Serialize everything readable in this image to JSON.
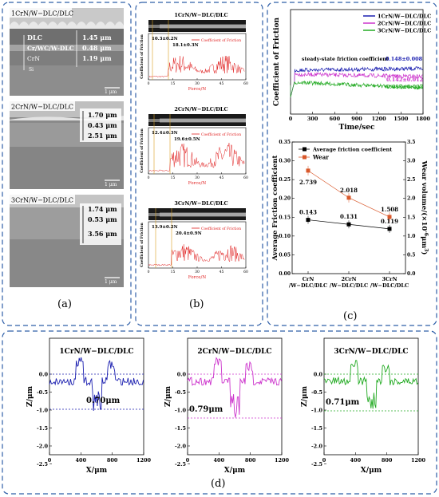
{
  "colors": {
    "frame": "#2f5fa8",
    "blue": "#1b1fb0",
    "magenta": "#cc33cc",
    "green": "#22aa22",
    "red": "#e02020",
    "orange": "#d9582b",
    "black": "#111111"
  },
  "panel_a": {
    "label": "(a)",
    "samples": [
      {
        "title": "1CrN/W−DLC/DLC",
        "layers": [
          "DLC",
          "Cr/WC/W-DLC",
          "CrN"
        ],
        "si_label": "Si",
        "thicknesses": [
          "1.45 μm",
          "0.48 μm",
          "1.19 μm"
        ],
        "scale": "1 μm"
      },
      {
        "title": "2CrN/W−DLC/DLC",
        "thicknesses": [
          "1.70 μm",
          "0.43 μm",
          "2.51 μm"
        ],
        "scale": "1 μm"
      },
      {
        "title": "3CrN/W−DLC/DLC",
        "thicknesses": [
          "1.74 μm",
          "0.53 μm",
          "3.56 μm"
        ],
        "scale": "1 μm"
      }
    ]
  },
  "panel_b": {
    "label": "(b)",
    "ylabel": "Coefficient of Friction",
    "xlabel": "Force/N",
    "legend": "Coefficient of Friction",
    "xticks": [
      "0",
      "15",
      "30",
      "45",
      "60"
    ],
    "subplots": [
      {
        "title": "1CrN/W−DLC/DLC",
        "lc1": "10.3±0.2N",
        "lc2": "18.1±0.3N"
      },
      {
        "title": "2CrN/W−DLC/DLC",
        "lc1": "12.4±0.3N",
        "lc2": "19.6±0.5N"
      },
      {
        "title": "3CrN/W−DLC/DLC",
        "lc1": "13.9±0.2N",
        "lc2": "20.4±0.9N"
      }
    ]
  },
  "panel_c": {
    "label": "(c)",
    "top": {
      "ylabel": "Coefficient of Friction",
      "xlabel": "Time/sec",
      "annotation": "steady-state friction coefficient",
      "xticks": [
        "0",
        "300",
        "600",
        "900",
        "1200",
        "1500",
        "1800"
      ],
      "values": [
        "0.148±0.008",
        "0.142±0.012",
        "0.097±0.007"
      ],
      "legend": [
        "1CrN/W−DLC/DLC",
        "2CrN/W−DLC/DLC",
        "3CrN/W−DLC/DLC"
      ]
    },
    "bottom": {
      "ylabel": "Average Friction coefficient",
      "ylabel2": "Wear volume/(×10",
      "ylabel2_exp": "-6",
      "ylabel2_unit": "μm",
      "ylabel2_exp2": "3",
      "ylabel2_close": ")",
      "legend": [
        "Average friction coefficient",
        "Wear"
      ],
      "yticks_left": [
        "0.00",
        "0.05",
        "0.10",
        "0.15",
        "0.20",
        "0.25",
        "0.30",
        "0.35"
      ],
      "yticks_right": [
        "0.0",
        "0.5",
        "1.0",
        "1.5",
        "2.0",
        "2.5",
        "3.0",
        "3.5"
      ],
      "categories": [
        [
          "CrN",
          "/W−DLC/DLC"
        ],
        [
          "2CrN",
          "/W−DLC/DLC"
        ],
        [
          "3CrN",
          "/W−DLC/DLC"
        ]
      ],
      "friction_labels": [
        "0.143",
        "0.131",
        "0.119"
      ],
      "wear_labels": [
        "2.739",
        "2.018",
        "1.508"
      ]
    }
  },
  "panel_d": {
    "label": "(d)",
    "ylabel": "Z/μm",
    "xlabel": "X/μm",
    "yticks": [
      "0.0",
      "-0.5",
      "-1.0",
      "-1.5",
      "-2.0",
      "-2.5"
    ],
    "xticks": [
      "0",
      "400",
      "800",
      "1200"
    ],
    "plots": [
      {
        "title": "1CrN/W−DLC/DLC",
        "depth": "0.70μm"
      },
      {
        "title": "2CrN/W−DLC/DLC",
        "depth": "0.79μm"
      },
      {
        "title": "3CrN/W−DLC/DLC",
        "depth": "0.71μm"
      }
    ]
  },
  "chart_data": [
    {
      "type": "line",
      "title": "",
      "xlabel": "Time/sec",
      "ylabel": "Coefficient of Friction",
      "xlim": [
        0,
        1800
      ],
      "series": [
        {
          "name": "1CrN/W−DLC/DLC",
          "steady_state": 0.148,
          "error": 0.008
        },
        {
          "name": "2CrN/W−DLC/DLC",
          "steady_state": 0.142,
          "error": 0.012
        },
        {
          "name": "3CrN/W−DLC/DLC",
          "steady_state": 0.097,
          "error": 0.007
        }
      ]
    },
    {
      "type": "line",
      "xlabel": "",
      "ylabel": "Average Friction coefficient",
      "ylim": [
        0,
        0.35
      ],
      "y2lim": [
        0,
        3.5
      ],
      "categories": [
        "CrN/W−DLC/DLC",
        "2CrN/W−DLC/DLC",
        "3CrN/W−DLC/DLC"
      ],
      "series": [
        {
          "name": "Average friction coefficient",
          "values": [
            0.143,
            0.131,
            0.119
          ]
        },
        {
          "name": "Wear",
          "values": [
            2.739,
            2.018,
            1.508
          ],
          "axis": "right"
        }
      ]
    },
    {
      "type": "line",
      "xlabel": "X/μm",
      "ylabel": "Z/μm",
      "xlim": [
        0,
        1200
      ],
      "ylim": [
        -2.5,
        0.5
      ],
      "series": [
        {
          "name": "1CrN/W−DLC/DLC",
          "depth": 0.7
        },
        {
          "name": "2CrN/W−DLC/DLC",
          "depth": 0.79
        },
        {
          "name": "3CrN/W−DLC/DLC",
          "depth": 0.71
        }
      ]
    }
  ]
}
